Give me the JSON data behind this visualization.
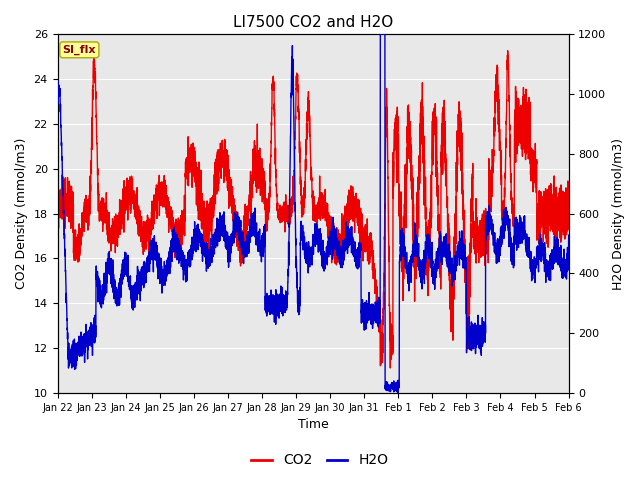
{
  "title": "LI7500 CO2 and H2O",
  "xlabel": "Time",
  "ylabel_left": "CO2 Density (mmol/m3)",
  "ylabel_right": "H2O Density (mmol/m3)",
  "ylim_left": [
    10,
    26
  ],
  "ylim_right": [
    0,
    1200
  ],
  "yticks_left": [
    10,
    12,
    14,
    16,
    18,
    20,
    22,
    24,
    26
  ],
  "yticks_right": [
    0,
    200,
    400,
    600,
    800,
    1000,
    1200
  ],
  "xtick_labels": [
    "Jan 22",
    "Jan 23",
    "Jan 24",
    "Jan 25",
    "Jan 26",
    "Jan 27",
    "Jan 28",
    "Jan 29",
    "Jan 30",
    "Jan 31",
    "Feb 1",
    "Feb 2",
    "Feb 3",
    "Feb 4",
    "Feb 5",
    "Feb 6"
  ],
  "co2_color": "#EE0000",
  "h2o_color": "#0000CC",
  "plot_bg_color": "#E8E8E8",
  "annotation_text": "SI_flx",
  "annotation_bg": "#FFFF99",
  "annotation_border": "#AAAA00",
  "linewidth": 1.0,
  "legend_co2": "CO2",
  "legend_h2o": "H2O",
  "n_days": 16,
  "fig_w": 6.4,
  "fig_h": 4.8,
  "dpi": 100
}
